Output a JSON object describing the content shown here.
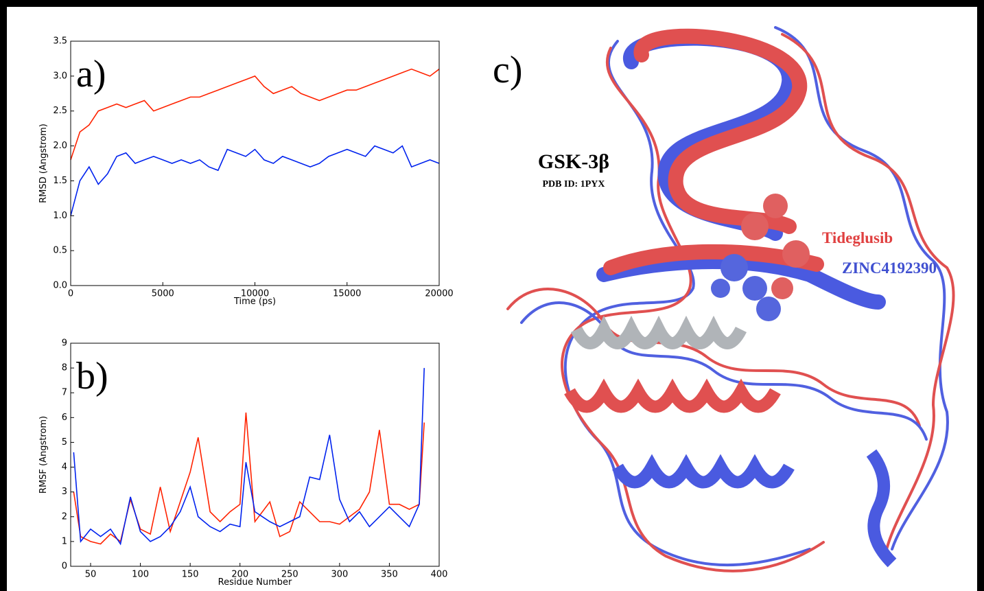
{
  "chart_data": [
    {
      "type": "line",
      "label": "a)",
      "xlabel": "Time (ps)",
      "ylabel": "RMSD (Angstrom)",
      "x": [
        0,
        500,
        1000,
        1500,
        2000,
        2500,
        3000,
        3500,
        4000,
        4500,
        5000,
        5500,
        6000,
        6500,
        7000,
        7500,
        8000,
        8500,
        9000,
        9500,
        10000,
        10500,
        11000,
        11500,
        12000,
        12500,
        13000,
        13500,
        14000,
        14500,
        15000,
        15500,
        16000,
        16500,
        17000,
        17500,
        18000,
        18500,
        19000,
        19500,
        20000
      ],
      "series": [
        {
          "color": "#ff2200",
          "values": [
            1.8,
            2.2,
            2.3,
            2.5,
            2.55,
            2.6,
            2.55,
            2.6,
            2.65,
            2.5,
            2.55,
            2.6,
            2.65,
            2.7,
            2.7,
            2.75,
            2.8,
            2.85,
            2.9,
            2.95,
            3.0,
            2.85,
            2.75,
            2.8,
            2.85,
            2.75,
            2.7,
            2.65,
            2.7,
            2.75,
            2.8,
            2.8,
            2.85,
            2.9,
            2.95,
            3.0,
            3.05,
            3.1,
            3.05,
            3.0,
            3.1
          ]
        },
        {
          "color": "#0022ee",
          "values": [
            1.0,
            1.5,
            1.7,
            1.45,
            1.6,
            1.85,
            1.9,
            1.75,
            1.8,
            1.85,
            1.8,
            1.75,
            1.8,
            1.75,
            1.8,
            1.7,
            1.65,
            1.95,
            1.9,
            1.85,
            1.95,
            1.8,
            1.75,
            1.85,
            1.8,
            1.75,
            1.7,
            1.75,
            1.85,
            1.9,
            1.95,
            1.9,
            1.85,
            2.0,
            1.95,
            1.9,
            2.0,
            1.7,
            1.75,
            1.8,
            1.75
          ]
        }
      ],
      "xlim": [
        0,
        20000
      ],
      "xticks": [
        0,
        5000,
        10000,
        15000,
        20000
      ],
      "ylim": [
        0,
        3.5
      ],
      "yticks": [
        {
          "value": 0,
          "label": "0.0"
        },
        0.5,
        {
          "value": 1,
          "label": "1.0"
        },
        1.5,
        {
          "value": 2,
          "label": "2.0"
        },
        2.5,
        {
          "value": 3,
          "label": "3.0"
        },
        3.5
      ]
    },
    {
      "type": "line",
      "label": "b)",
      "xlabel": "Residue Number",
      "ylabel": "RMSF (Angstrom)",
      "x": [
        33,
        40,
        50,
        60,
        70,
        80,
        90,
        100,
        110,
        120,
        130,
        140,
        150,
        158,
        170,
        180,
        190,
        200,
        206,
        215,
        230,
        240,
        250,
        260,
        270,
        280,
        290,
        300,
        310,
        320,
        330,
        340,
        350,
        360,
        370,
        380,
        385
      ],
      "series": [
        {
          "color": "#ff2200",
          "values": [
            3.0,
            1.2,
            1.0,
            0.9,
            1.3,
            1.0,
            2.7,
            1.5,
            1.3,
            3.2,
            1.4,
            2.6,
            3.8,
            5.2,
            2.2,
            1.8,
            2.2,
            2.5,
            6.2,
            1.8,
            2.6,
            1.2,
            1.4,
            2.6,
            2.2,
            1.8,
            1.8,
            1.7,
            2.0,
            2.3,
            3.0,
            5.5,
            2.5,
            2.5,
            2.3,
            2.5,
            5.8
          ]
        },
        {
          "color": "#0022ee",
          "values": [
            4.6,
            1.0,
            1.5,
            1.2,
            1.5,
            0.9,
            2.8,
            1.4,
            1.0,
            1.2,
            1.6,
            2.2,
            3.2,
            2.0,
            1.6,
            1.4,
            1.7,
            1.6,
            4.2,
            2.2,
            1.8,
            1.6,
            1.8,
            2.0,
            3.6,
            3.5,
            5.3,
            2.7,
            1.8,
            2.2,
            1.6,
            2.0,
            2.4,
            2.0,
            1.6,
            2.5,
            8.0
          ]
        }
      ],
      "xlim": [
        30,
        400
      ],
      "xticks": [
        50,
        100,
        150,
        200,
        250,
        300,
        350,
        400
      ],
      "ylim": [
        0,
        9
      ],
      "yticks": [
        0,
        1,
        2,
        3,
        4,
        5,
        6,
        7,
        8,
        9
      ]
    }
  ],
  "molecule_panel": {
    "label": "c)",
    "title": "GSK-3β",
    "subtitle": "PDB ID: 1PYX",
    "ligands": [
      "Tideglusib",
      "ZINC4192390"
    ]
  }
}
